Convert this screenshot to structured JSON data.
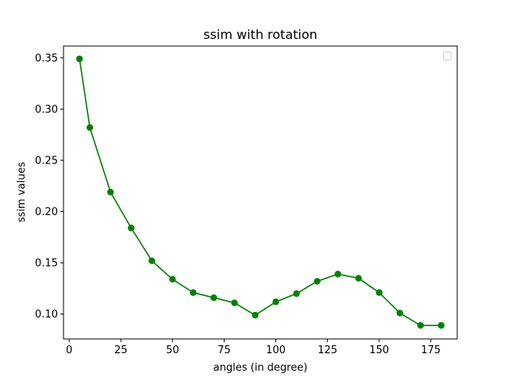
{
  "chart_data": {
    "type": "line",
    "title": "ssim with rotation",
    "xlabel": "angles (in degree)",
    "ylabel": "ssim values",
    "xlim": [
      -2.75,
      187.75
    ],
    "ylim": [
      0.0758,
      0.3615
    ],
    "xticks": [
      0,
      25,
      50,
      75,
      100,
      125,
      150,
      175
    ],
    "yticks": [
      0.1,
      0.15,
      0.2,
      0.25,
      0.3,
      0.35
    ],
    "ytick_labels": [
      "0.10",
      "0.15",
      "0.20",
      "0.25",
      "0.30",
      "0.35"
    ],
    "grid": false,
    "legend": {
      "placement": "top-right",
      "entries": []
    },
    "series": [
      {
        "color": "#008000",
        "marker": "circle",
        "x": [
          5,
          10,
          20,
          30,
          40,
          50,
          60,
          70,
          80,
          90,
          100,
          110,
          120,
          130,
          140,
          150,
          160,
          170,
          180
        ],
        "values": [
          0.349,
          0.282,
          0.219,
          0.184,
          0.152,
          0.134,
          0.121,
          0.116,
          0.111,
          0.099,
          0.112,
          0.12,
          0.132,
          0.139,
          0.135,
          0.121,
          0.101,
          0.089,
          0.089
        ]
      }
    ]
  }
}
